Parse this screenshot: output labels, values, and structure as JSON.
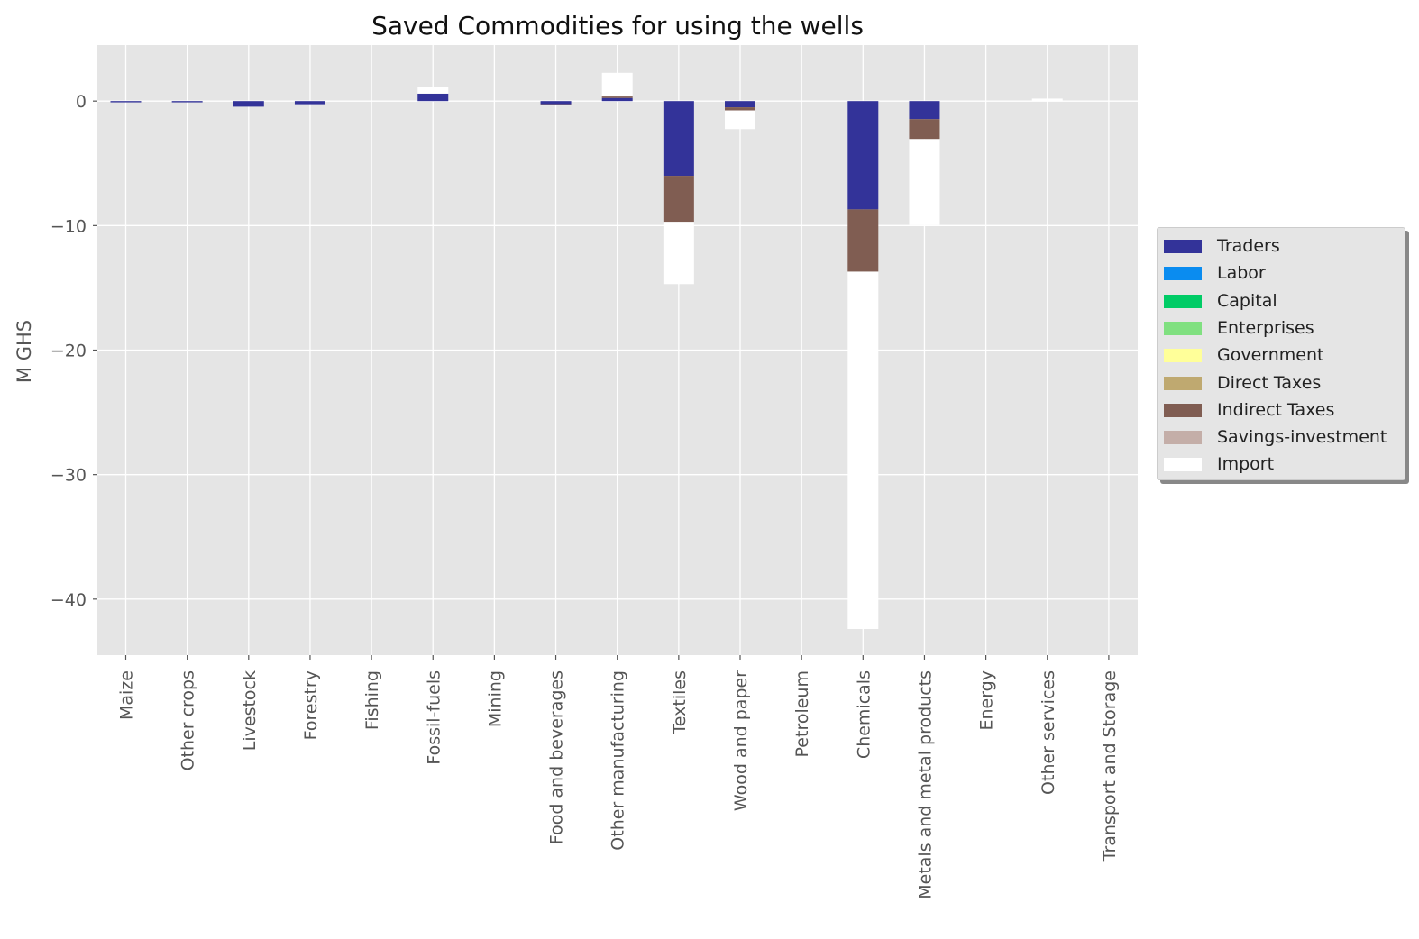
{
  "chart_data": {
    "type": "bar",
    "stacked": true,
    "title": "Saved Commodities for using the wells",
    "xlabel": "",
    "ylabel": "M GHS",
    "ylim": [
      -44.5,
      4.5
    ],
    "yticks": [
      0,
      -10,
      -20,
      -30,
      -40
    ],
    "ytick_labels": [
      "0",
      "−10",
      "−20",
      "−30",
      "−40"
    ],
    "grid": true,
    "legend_position": "center-right outside",
    "categories": [
      "Maize",
      "Other crops",
      "Livestock",
      "Forestry",
      "Fishing",
      "Fossil-fuels",
      "Mining",
      "Food and beverages",
      "Other manufacturing",
      "Textiles",
      "Wood and paper",
      "Petroleum",
      "Chemicals",
      "Metals and metal products",
      "Energy",
      "Other services",
      "Transport and Storage"
    ],
    "series": [
      {
        "name": "Traders",
        "color": "#333399",
        "values": [
          -0.1,
          -0.1,
          -0.45,
          -0.25,
          0,
          0.6,
          0,
          -0.25,
          0.25,
          -6.0,
          -0.5,
          0,
          -8.7,
          -1.45,
          0,
          0,
          0
        ]
      },
      {
        "name": "Labor",
        "color": "#0a8cf0",
        "values": [
          0,
          0,
          0,
          0,
          0,
          0,
          0,
          0,
          0,
          0,
          0,
          0,
          0,
          0,
          0,
          0,
          0
        ]
      },
      {
        "name": "Capital",
        "color": "#00cc66",
        "values": [
          0,
          0,
          0,
          0,
          0,
          0,
          0,
          0,
          0,
          0,
          0,
          0,
          0,
          0,
          0,
          0,
          0
        ]
      },
      {
        "name": "Enterprises",
        "color": "#80e080",
        "values": [
          0,
          0,
          0,
          0,
          0,
          0,
          0,
          0,
          0,
          0,
          0,
          0,
          0,
          0,
          0,
          0,
          0
        ]
      },
      {
        "name": "Government",
        "color": "#ffff99",
        "values": [
          0,
          0,
          0,
          0,
          0,
          0,
          0,
          0,
          0,
          0,
          0,
          0,
          0,
          0,
          0,
          0,
          0
        ]
      },
      {
        "name": "Direct Taxes",
        "color": "#bfa970",
        "values": [
          0,
          0,
          0,
          0,
          0,
          0,
          0,
          0,
          0,
          0,
          0,
          0,
          0,
          0,
          0,
          0,
          0
        ]
      },
      {
        "name": "Indirect Taxes",
        "color": "#805d52",
        "values": [
          0,
          0,
          0,
          0,
          0,
          0,
          0,
          -0.05,
          0.12,
          -3.7,
          -0.25,
          0,
          -5.0,
          -1.6,
          0,
          0,
          0
        ]
      },
      {
        "name": "Savings-investment",
        "color": "#c4aea8",
        "values": [
          0,
          0,
          0,
          0,
          0,
          0,
          0,
          0,
          0,
          0,
          0,
          0,
          0,
          0,
          0,
          0,
          0
        ]
      },
      {
        "name": "Import",
        "color": "#ffffff",
        "values": [
          0,
          0,
          0,
          0,
          0,
          0.5,
          0,
          -0.05,
          1.9,
          -5.0,
          -1.5,
          0,
          -28.7,
          -6.9,
          0,
          0.2,
          0
        ]
      }
    ]
  }
}
